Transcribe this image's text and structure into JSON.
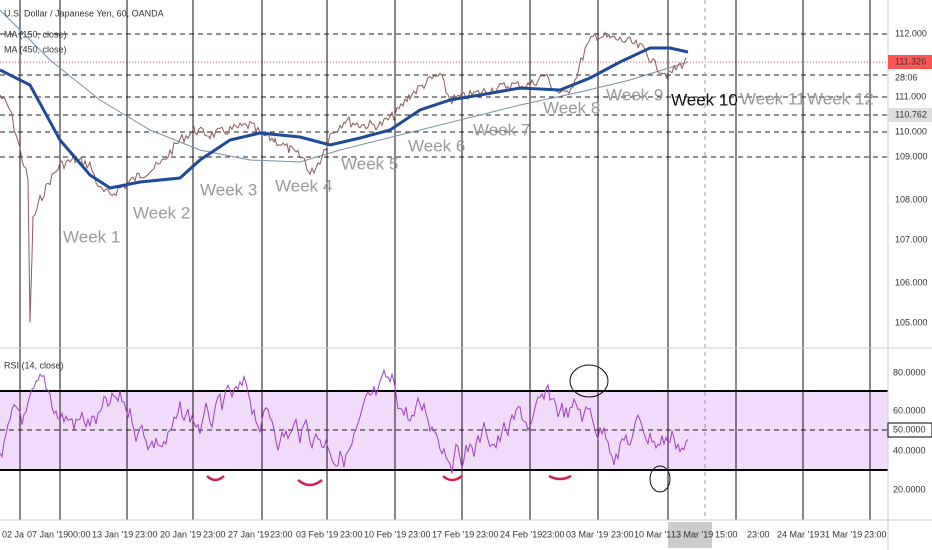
{
  "header": {
    "title": "U.S. Dollar / Japanese Yen, 60, OANDA",
    "indicators": [
      "MA (150, close)",
      "MA (450, close)"
    ]
  },
  "price_axis": {
    "labels": [
      "112.000",
      "111.326",
      "28:06",
      "111.000",
      "110.762",
      "110.000",
      "109.000",
      "108.000",
      "107.000",
      "106.000",
      "105.000"
    ]
  },
  "weeks": [
    "Week 1",
    "Week 2",
    "Week 3",
    "Week 4",
    "Week 5",
    "Week 6",
    "Week 7",
    "Week 8",
    "Week 9",
    "Week 10",
    "Week 11",
    "Week 12"
  ],
  "rsi": {
    "title": "RSI (14, close)",
    "labels": [
      "80.0000",
      "60.0000",
      "50.0000",
      "40.0000",
      "20.0000"
    ]
  },
  "time_axis": {
    "labels": [
      "02 Ja",
      "07 Jan '19",
      "00:00",
      "13 Jan '19",
      "23:00",
      "20 Jan '19",
      "23:00",
      "27 Jan '19",
      "23:00",
      "03 Feb '19",
      "23:00",
      "10 Feb '19",
      "23:00",
      "17 Feb '19",
      "23:00",
      "24 Feb '19",
      "23:00",
      "03 Mar '19",
      "23:00",
      "10 Mar '1",
      "13 Mar '19",
      "15:00",
      "23:00",
      "24 Mar '19",
      "31 Mar '19",
      "23:00"
    ]
  }
}
